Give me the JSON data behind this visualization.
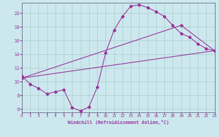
{
  "xlabel": "Windchill (Refroidissement éolien,°C)",
  "bg_color": "#cce8ee",
  "line_color": "#993399",
  "grid_color": "#aacccc",
  "xlim": [
    0,
    23
  ],
  "ylim": [
    5.5,
    21.5
  ],
  "yticks": [
    6,
    8,
    10,
    12,
    14,
    16,
    18,
    20
  ],
  "xticks": [
    0,
    1,
    2,
    3,
    4,
    5,
    6,
    7,
    8,
    9,
    10,
    11,
    12,
    13,
    14,
    15,
    16,
    17,
    18,
    19,
    20,
    21,
    22,
    23
  ],
  "curve_x": [
    0,
    1,
    2,
    3,
    4,
    5,
    6,
    7,
    8,
    9,
    10,
    11,
    12,
    13,
    14,
    15,
    16,
    17,
    18,
    19,
    20,
    21,
    22,
    23
  ],
  "curve_y": [
    10.8,
    9.6,
    9.0,
    8.2,
    8.5,
    8.8,
    6.2,
    5.7,
    6.3,
    9.2,
    14.2,
    17.5,
    19.5,
    21.0,
    21.2,
    20.8,
    20.2,
    19.5,
    18.2,
    17.0,
    16.5,
    15.5,
    14.8,
    14.5
  ],
  "line1_x": [
    0,
    23
  ],
  "line1_y": [
    10.5,
    14.5
  ],
  "line2_x": [
    0,
    19,
    23
  ],
  "line2_y": [
    10.5,
    18.2,
    14.5
  ]
}
